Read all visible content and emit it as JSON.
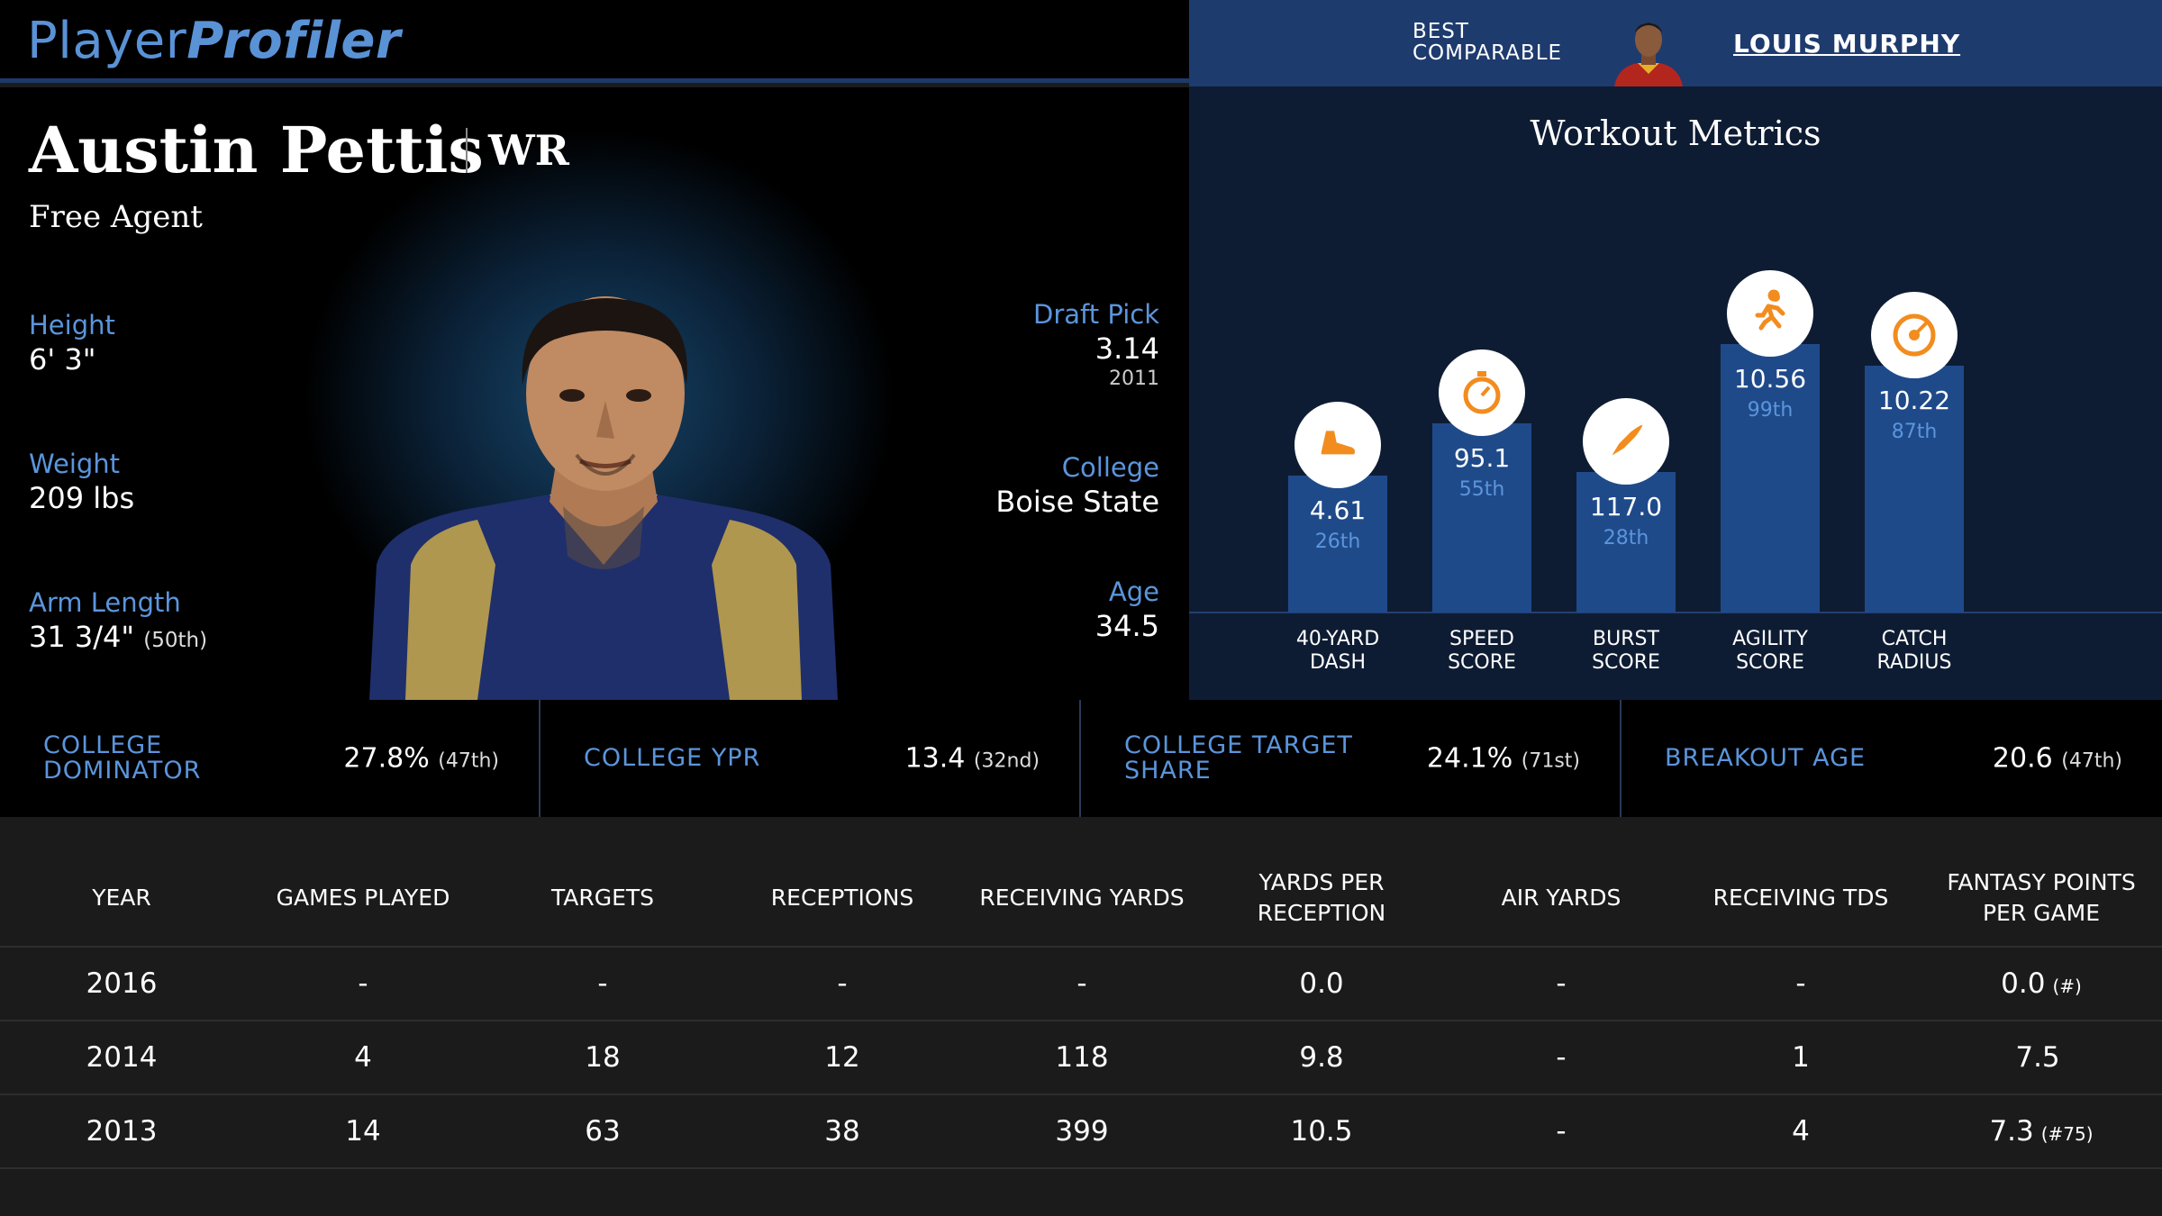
{
  "header": {
    "logo_part1": "Player",
    "logo_part2": "Profiler",
    "comparable_label": "BEST\nCOMPARABLE",
    "comparable_name": "LOUIS MURPHY"
  },
  "player": {
    "name": "Austin Pettis",
    "position": "WR",
    "team": "Free Agent"
  },
  "bio": {
    "height_label": "Height",
    "height_value": "6' 3\"",
    "weight_label": "Weight",
    "weight_value": "209 lbs",
    "arm_label": "Arm Length",
    "arm_value": "31 3/4\"",
    "arm_pct": "(50th)",
    "draft_label": "Draft Pick",
    "draft_value": "3.14",
    "draft_year": "2011",
    "college_label": "College",
    "college_value": "Boise State",
    "age_label": "Age",
    "age_value": "34.5"
  },
  "workout": {
    "title": "Workout Metrics",
    "colors": {
      "bar": "#1f4a8a",
      "icon_bg": "#ffffff",
      "icon": "#f28c1e",
      "pct": "#5b95dc"
    },
    "metrics": [
      {
        "label1": "40-YARD",
        "label2": "DASH",
        "value": "4.61",
        "pct": "26th",
        "percentile": 26,
        "icon": "shoe-icon"
      },
      {
        "label1": "SPEED",
        "label2": "SCORE",
        "value": "95.1",
        "pct": "55th",
        "percentile": 55,
        "icon": "stopwatch-icon"
      },
      {
        "label1": "BURST",
        "label2": "SCORE",
        "value": "117.0",
        "pct": "28th",
        "percentile": 28,
        "icon": "rocket-icon"
      },
      {
        "label1": "AGILITY",
        "label2": "SCORE",
        "value": "10.56",
        "pct": "99th",
        "percentile": 99,
        "icon": "runner-icon"
      },
      {
        "label1": "CATCH",
        "label2": "RADIUS",
        "value": "10.22",
        "pct": "87th",
        "percentile": 87,
        "icon": "target-icon"
      }
    ]
  },
  "college": [
    {
      "label": "COLLEGE DOMINATOR",
      "value": "27.8%",
      "pct": "(47th)"
    },
    {
      "label": "COLLEGE YPR",
      "value": "13.4",
      "pct": "(32nd)"
    },
    {
      "label": "COLLEGE TARGET SHARE",
      "value": "24.1%",
      "pct": "(71st)"
    },
    {
      "label": "BREAKOUT AGE",
      "value": "20.6",
      "pct": "(47th)"
    }
  ],
  "table": {
    "headers": [
      "YEAR",
      "GAMES PLAYED",
      "TARGETS",
      "RECEPTIONS",
      "RECEIVING YARDS",
      "YARDS PER RECEPTION",
      "AIR YARDS",
      "RECEIVING TDS",
      "FANTASY POINTS PER GAME"
    ],
    "rows": [
      {
        "cells": [
          "2016",
          "-",
          "-",
          "-",
          "-",
          "0.0",
          "-",
          "-",
          "0.0"
        ],
        "rank": "(#)"
      },
      {
        "cells": [
          "2014",
          "4",
          "18",
          "12",
          "118",
          "9.8",
          "-",
          "1",
          "7.5"
        ],
        "rank": ""
      },
      {
        "cells": [
          "2013",
          "14",
          "63",
          "38",
          "399",
          "10.5",
          "-",
          "4",
          "7.3"
        ],
        "rank": "(#75)"
      }
    ]
  }
}
